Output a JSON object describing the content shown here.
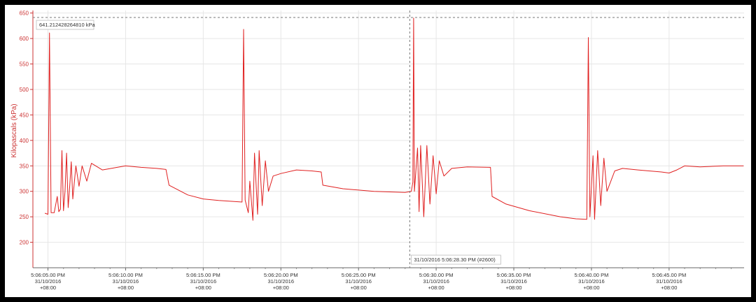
{
  "chart_data": {
    "type": "line",
    "ylabel": "Kilopascals (kPa)",
    "ylim": [
      150,
      655
    ],
    "y_ticks": [
      200,
      250,
      300,
      350,
      400,
      450,
      500,
      550,
      600,
      650
    ],
    "x_range_seconds": [
      4.03,
      49.83
    ],
    "x_ticks": [
      {
        "t": 5,
        "time": "5:06:05.00 PM",
        "date": "31/10/2016",
        "tz": "+08:00"
      },
      {
        "t": 10,
        "time": "5:06:10.00 PM",
        "date": "31/10/2016",
        "tz": "+08:00"
      },
      {
        "t": 15,
        "time": "5:06:15.00 PM",
        "date": "31/10/2016",
        "tz": "+08:00"
      },
      {
        "t": 20,
        "time": "5:06:20.00 PM",
        "date": "31/10/2016",
        "tz": "+08:00"
      },
      {
        "t": 25,
        "time": "5:06:25.00 PM",
        "date": "31/10/2016",
        "tz": "+08:00"
      },
      {
        "t": 30,
        "time": "5:06:30.00 PM",
        "date": "31/10/2016",
        "tz": "+08:00"
      },
      {
        "t": 35,
        "time": "5:06:35.00 PM",
        "date": "31/10/2016",
        "tz": "+08:00"
      },
      {
        "t": 40,
        "time": "5:06:40.00 PM",
        "date": "31/10/2016",
        "tz": "+08:00"
      },
      {
        "t": 45,
        "time": "5:06:45.00 PM",
        "date": "31/10/2016",
        "tz": "+08:00"
      }
    ],
    "grid": true,
    "series": [
      {
        "color": "#e02020",
        "points": [
          [
            4.8,
            257
          ],
          [
            5.0,
            255
          ],
          [
            5.1,
            611
          ],
          [
            5.2,
            258
          ],
          [
            5.4,
            258
          ],
          [
            5.6,
            290
          ],
          [
            5.7,
            260
          ],
          [
            5.8,
            265
          ],
          [
            5.9,
            380
          ],
          [
            6.0,
            262
          ],
          [
            6.1,
            300
          ],
          [
            6.2,
            375
          ],
          [
            6.3,
            268
          ],
          [
            6.4,
            310
          ],
          [
            6.5,
            358
          ],
          [
            6.6,
            285
          ],
          [
            6.8,
            350
          ],
          [
            7.0,
            310
          ],
          [
            7.2,
            350
          ],
          [
            7.5,
            320
          ],
          [
            7.8,
            355
          ],
          [
            8.5,
            342
          ],
          [
            10.0,
            350
          ],
          [
            11.0,
            347
          ],
          [
            12.0,
            345
          ],
          [
            12.6,
            343
          ],
          [
            12.8,
            312
          ],
          [
            14.0,
            293
          ],
          [
            15.0,
            285
          ],
          [
            16.0,
            282
          ],
          [
            17.0,
            280
          ],
          [
            17.5,
            279
          ],
          [
            17.6,
            618
          ],
          [
            17.7,
            283
          ],
          [
            17.9,
            258
          ],
          [
            18.0,
            320
          ],
          [
            18.2,
            243
          ],
          [
            18.3,
            375
          ],
          [
            18.5,
            255
          ],
          [
            18.6,
            380
          ],
          [
            18.8,
            272
          ],
          [
            19.0,
            360
          ],
          [
            19.2,
            300
          ],
          [
            19.5,
            330
          ],
          [
            20.0,
            335
          ],
          [
            21.0,
            342
          ],
          [
            22.0,
            340
          ],
          [
            22.6,
            338
          ],
          [
            22.7,
            312
          ],
          [
            24.0,
            305
          ],
          [
            26.0,
            300
          ],
          [
            28.0,
            298
          ],
          [
            28.4,
            300
          ],
          [
            28.5,
            318
          ],
          [
            28.55,
            640
          ],
          [
            28.6,
            300
          ],
          [
            28.8,
            385
          ],
          [
            28.9,
            260
          ],
          [
            29.0,
            390
          ],
          [
            29.2,
            250
          ],
          [
            29.4,
            390
          ],
          [
            29.6,
            275
          ],
          [
            29.8,
            370
          ],
          [
            30.0,
            295
          ],
          [
            30.2,
            360
          ],
          [
            30.5,
            330
          ],
          [
            31.0,
            345
          ],
          [
            32.0,
            348
          ],
          [
            33.5,
            347
          ],
          [
            33.6,
            290
          ],
          [
            34.5,
            275
          ],
          [
            36.0,
            262
          ],
          [
            38.0,
            250
          ],
          [
            39.0,
            246
          ],
          [
            39.7,
            245
          ],
          [
            39.8,
            602
          ],
          [
            39.9,
            250
          ],
          [
            40.1,
            370
          ],
          [
            40.2,
            245
          ],
          [
            40.4,
            380
          ],
          [
            40.6,
            272
          ],
          [
            40.8,
            365
          ],
          [
            41.0,
            300
          ],
          [
            41.5,
            340
          ],
          [
            42.0,
            345
          ],
          [
            43.0,
            342
          ],
          [
            44.5,
            338
          ],
          [
            45.0,
            336
          ],
          [
            45.5,
            342
          ],
          [
            46.0,
            350
          ],
          [
            47.0,
            348
          ],
          [
            48.5,
            350
          ],
          [
            49.8,
            350
          ]
        ]
      }
    ],
    "annotations": {
      "max_value": "641.212428264810 kPa",
      "max_kpa": 641.21,
      "cursor_label": "31/10/2016 5:06:28.30 PM (#2600)",
      "cursor_t": 28.3
    }
  }
}
